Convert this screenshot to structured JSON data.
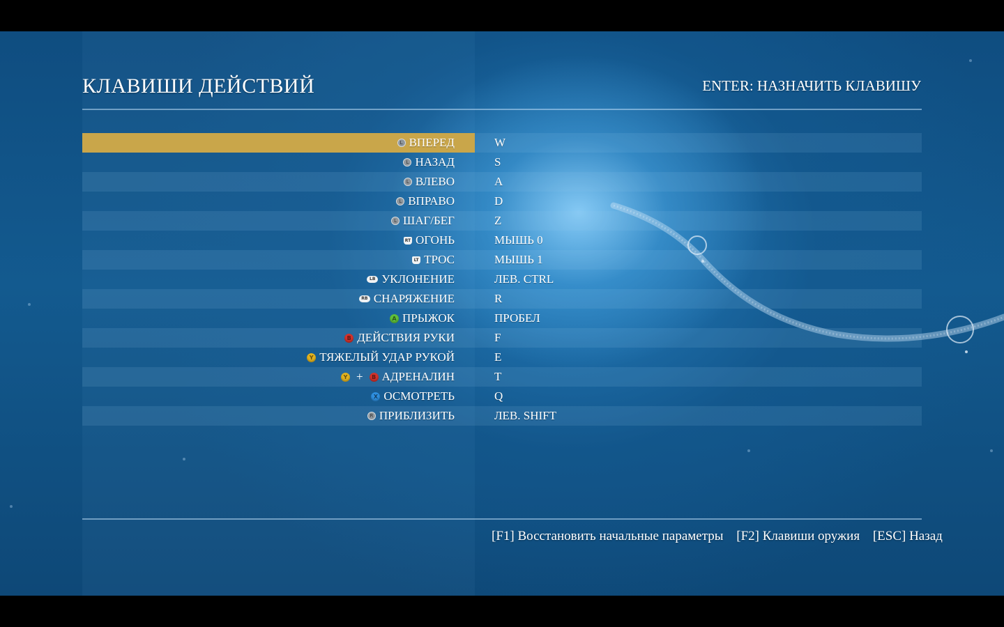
{
  "screen": {
    "title": "КЛАВИШИ ДЕЙСТВИЙ",
    "hint": "ENTER: НАЗНАЧИТЬ КЛАВИШУ"
  },
  "bindings": [
    {
      "action": "ВПЕРЕД",
      "key": "W",
      "icons": [
        {
          "type": "stick",
          "glyph": "L",
          "name": "left-stick-icon"
        }
      ],
      "selected": true
    },
    {
      "action": "НАЗАД",
      "key": "S",
      "icons": [
        {
          "type": "stick",
          "glyph": "L",
          "name": "left-stick-icon"
        }
      ]
    },
    {
      "action": "ВЛЕВО",
      "key": "A",
      "icons": [
        {
          "type": "stick",
          "glyph": "L",
          "name": "left-stick-icon"
        }
      ]
    },
    {
      "action": "ВПРАВО",
      "key": "D",
      "icons": [
        {
          "type": "stick",
          "glyph": "L",
          "name": "left-stick-icon"
        }
      ]
    },
    {
      "action": "ШАГ/БЕГ",
      "key": "Z",
      "icons": [
        {
          "type": "stick",
          "glyph": "L",
          "name": "left-stick-icon"
        }
      ]
    },
    {
      "action": "ОГОНЬ",
      "key": "МЫШЬ 0",
      "icons": [
        {
          "type": "trigger",
          "glyph": "RT",
          "name": "right-trigger-icon"
        }
      ]
    },
    {
      "action": "ТРОС",
      "key": "МЫШЬ 1",
      "icons": [
        {
          "type": "trigger",
          "glyph": "LT",
          "name": "left-trigger-icon"
        }
      ]
    },
    {
      "action": "УКЛОНЕНИЕ",
      "key": "ЛЕВ. CTRL",
      "icons": [
        {
          "type": "bumper",
          "glyph": "LB",
          "name": "left-bumper-icon"
        }
      ]
    },
    {
      "action": "СНАРЯЖЕНИЕ",
      "key": "R",
      "icons": [
        {
          "type": "bumper",
          "glyph": "RB",
          "name": "right-bumper-icon"
        }
      ]
    },
    {
      "action": "ПРЫЖОК",
      "key": "ПРОБЕЛ",
      "icons": [
        {
          "type": "face",
          "glyph": "A",
          "color": "green",
          "name": "a-button-icon"
        }
      ]
    },
    {
      "action": "ДЕЙСТВИЯ РУКИ",
      "key": "F",
      "icons": [
        {
          "type": "face",
          "glyph": "B",
          "color": "red",
          "name": "b-button-icon"
        }
      ]
    },
    {
      "action": "ТЯЖЕЛЫЙ УДАР РУКОЙ",
      "key": "E",
      "icons": [
        {
          "type": "face",
          "glyph": "Y",
          "color": "yellow",
          "name": "y-button-icon"
        }
      ]
    },
    {
      "action": "АДРЕНАЛИН",
      "key": "T",
      "icons": [
        {
          "type": "face",
          "glyph": "Y",
          "color": "yellow",
          "name": "y-button-icon"
        },
        {
          "type": "face",
          "glyph": "B",
          "color": "red",
          "name": "b-button-icon"
        }
      ],
      "joiner": "+"
    },
    {
      "action": "ОСМОТРЕТЬ",
      "key": "Q",
      "icons": [
        {
          "type": "face",
          "glyph": "X",
          "color": "blue",
          "name": "x-button-icon"
        }
      ]
    },
    {
      "action": "ПРИБЛИЗИТЬ",
      "key": "ЛЕВ. SHIFT",
      "icons": [
        {
          "type": "stick",
          "glyph": "R",
          "name": "right-stick-icon"
        }
      ]
    }
  ],
  "footer": {
    "restore": "[F1] Восстановить начальные параметры",
    "weapons": "[F2] Клавиши оружия",
    "back": "[ESC] Назад"
  },
  "colors": {
    "selection": "#c9a64a",
    "background": "#135a8f"
  }
}
